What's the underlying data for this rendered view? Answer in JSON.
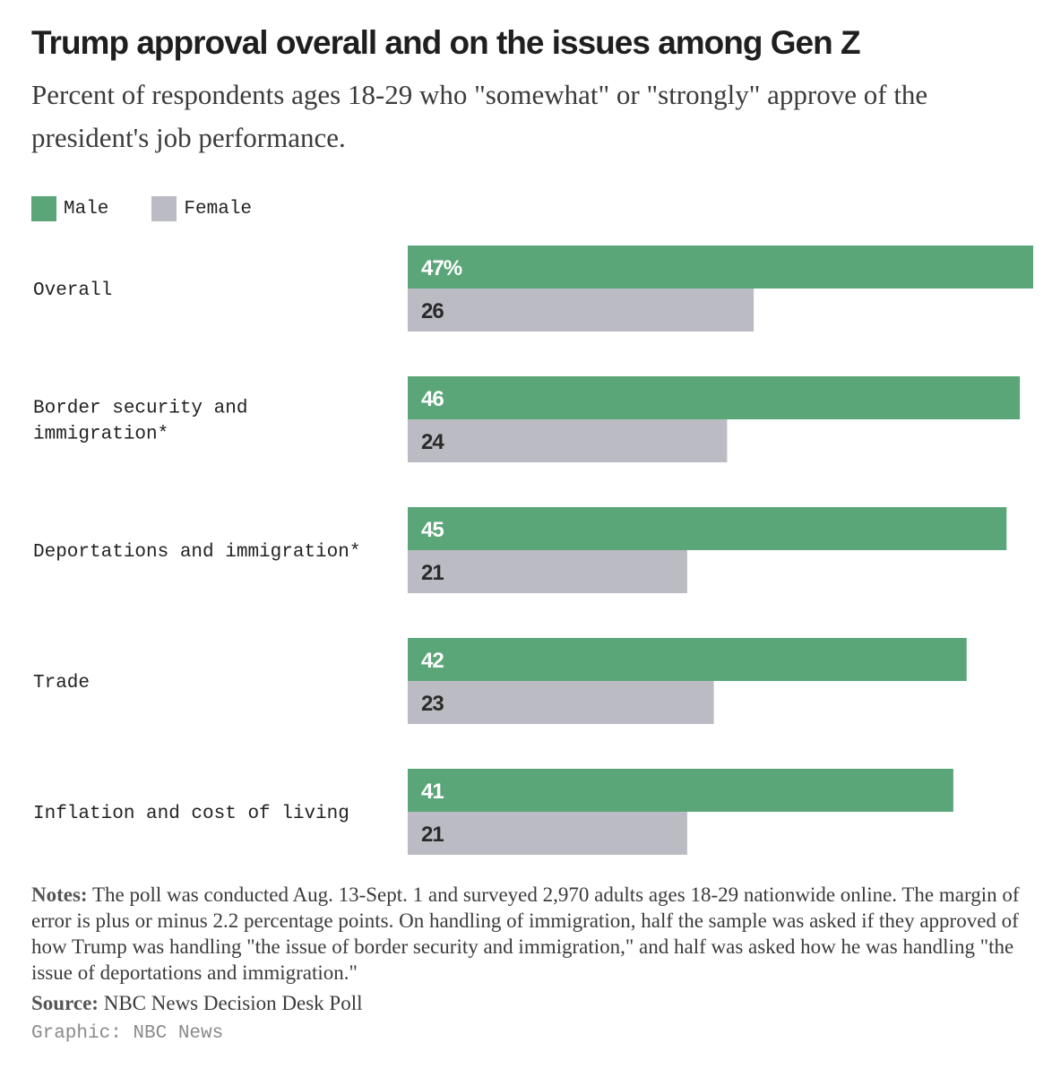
{
  "header": {
    "title": "Trump approval overall and on the issues among Gen Z",
    "subtitle": "Percent of respondents ages 18-29 who \"somewhat\" or \"strongly\" approve of the president's job performance."
  },
  "legend": {
    "items": [
      {
        "label": "Male",
        "color": "#5aa678"
      },
      {
        "label": "Female",
        "color": "#bbbbc3"
      }
    ]
  },
  "chart_data": {
    "type": "bar",
    "orientation": "horizontal",
    "categories": [
      "Overall",
      "Border security and immigration*",
      "Deportations and immigration*",
      "Trade",
      "Inflation and cost of living"
    ],
    "category_lines": [
      [
        "Overall"
      ],
      [
        "Border security and",
        "immigration*"
      ],
      [
        "Deportations and immigration*"
      ],
      [
        "Trade"
      ],
      [
        "Inflation and cost of living"
      ]
    ],
    "series": [
      {
        "name": "Male",
        "values": [
          47,
          46,
          45,
          42,
          41
        ],
        "labels": [
          "47%",
          "46",
          "45",
          "42",
          "41"
        ],
        "color": "#5aa678",
        "label_color": "#ffffff"
      },
      {
        "name": "Female",
        "values": [
          26,
          24,
          21,
          23,
          21
        ],
        "labels": [
          "26",
          "24",
          "21",
          "23",
          "21"
        ],
        "color": "#bbbbc3",
        "label_color": "#2a2a2a"
      }
    ],
    "xlim": [
      0,
      47
    ],
    "title": "Trump approval overall and on the issues among Gen Z",
    "xlabel": "",
    "ylabel": "",
    "grid": false,
    "legend": "top-left"
  },
  "footer": {
    "notes_label": "Notes:",
    "notes_text": "The poll was conducted Aug. 13-Sept. 1 and surveyed 2,970 adults ages 18-29 nationwide online. The margin of error is plus or minus 2.2 percentage points. On handling of immigration, half the sample was asked if they approved of how Trump was handling \"the issue of border security and immigration,\" and half was asked how he was handling \"the issue of deportations and immigration.\"",
    "source_label": "Source:",
    "source_text": "NBC News Decision Desk Poll",
    "credit": "Graphic: NBC News"
  }
}
